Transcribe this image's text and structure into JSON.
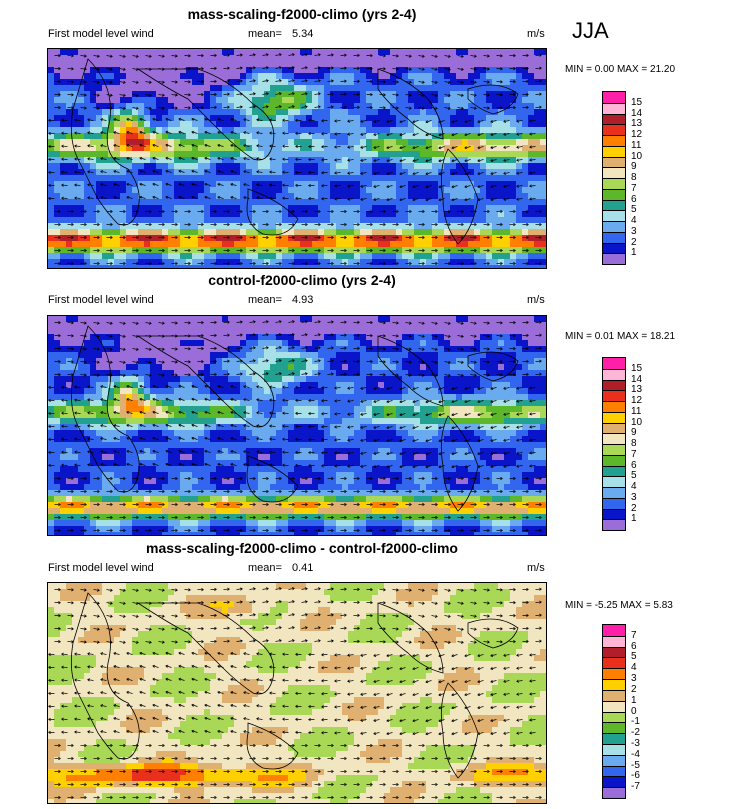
{
  "season": "JJA",
  "panels": [
    {
      "title": "mass-scaling-f2000-climo (yrs 2-4)",
      "left_label": "First model level wind",
      "mean_label": "mean=",
      "mean_value": "5.34",
      "units": "m/s",
      "minmax_text": "MIN =   0.00 MAX =  21.20",
      "colorbar_labels": [
        "15",
        "14",
        "13",
        "12",
        "11",
        "10",
        "9",
        "8",
        "7",
        "6",
        "5",
        "4",
        "3",
        "2",
        "1"
      ],
      "colorbar_colors": [
        "#ff1fa8",
        "#ffb5d5",
        "#b01e2a",
        "#e8301d",
        "#ff8000",
        "#ffd000",
        "#e0b070",
        "#f2e6c0",
        "#a8d855",
        "#5cb82a",
        "#22a090",
        "#a8e0e8",
        "#6aaaee",
        "#3366ee",
        "#0a14c8",
        "#9b6dd9"
      ],
      "field": "forced"
    },
    {
      "title": "control-f2000-climo (yrs 2-4)",
      "left_label": "First model level wind",
      "mean_label": "mean=",
      "mean_value": "4.93",
      "units": "m/s",
      "minmax_text": "MIN =   0.01 MAX =  18.21",
      "colorbar_labels": [
        "15",
        "14",
        "13",
        "12",
        "11",
        "10",
        "9",
        "8",
        "7",
        "6",
        "5",
        "4",
        "3",
        "2",
        "1"
      ],
      "colorbar_colors": [
        "#ff1fa8",
        "#ffb5d5",
        "#b01e2a",
        "#e8301d",
        "#ff8000",
        "#ffd000",
        "#e0b070",
        "#f2e6c0",
        "#a8d855",
        "#5cb82a",
        "#22a090",
        "#a8e0e8",
        "#6aaaee",
        "#3366ee",
        "#0a14c8",
        "#9b6dd9"
      ],
      "field": "control"
    },
    {
      "title": "mass-scaling-f2000-climo - control-f2000-climo",
      "left_label": "First model level wind",
      "mean_label": "mean=",
      "mean_value": "0.41",
      "units": "m/s",
      "minmax_text": "MIN =  -5.25 MAX =   5.83",
      "colorbar_labels": [
        "7",
        "6",
        "5",
        "4",
        "3",
        "2",
        "1",
        "0",
        "-1",
        "-2",
        "-3",
        "-4",
        "-5",
        "-6",
        "-7"
      ],
      "colorbar_colors": [
        "#ff1fa8",
        "#ffb5d5",
        "#b01e2a",
        "#e8301d",
        "#ff8000",
        "#ffd000",
        "#e0b070",
        "#f2e6c0",
        "#a8d855",
        "#5cb82a",
        "#22a090",
        "#a8e0e8",
        "#6aaaee",
        "#3366ee",
        "#0a14c8",
        "#9b6dd9"
      ],
      "field": "diff"
    }
  ]
}
